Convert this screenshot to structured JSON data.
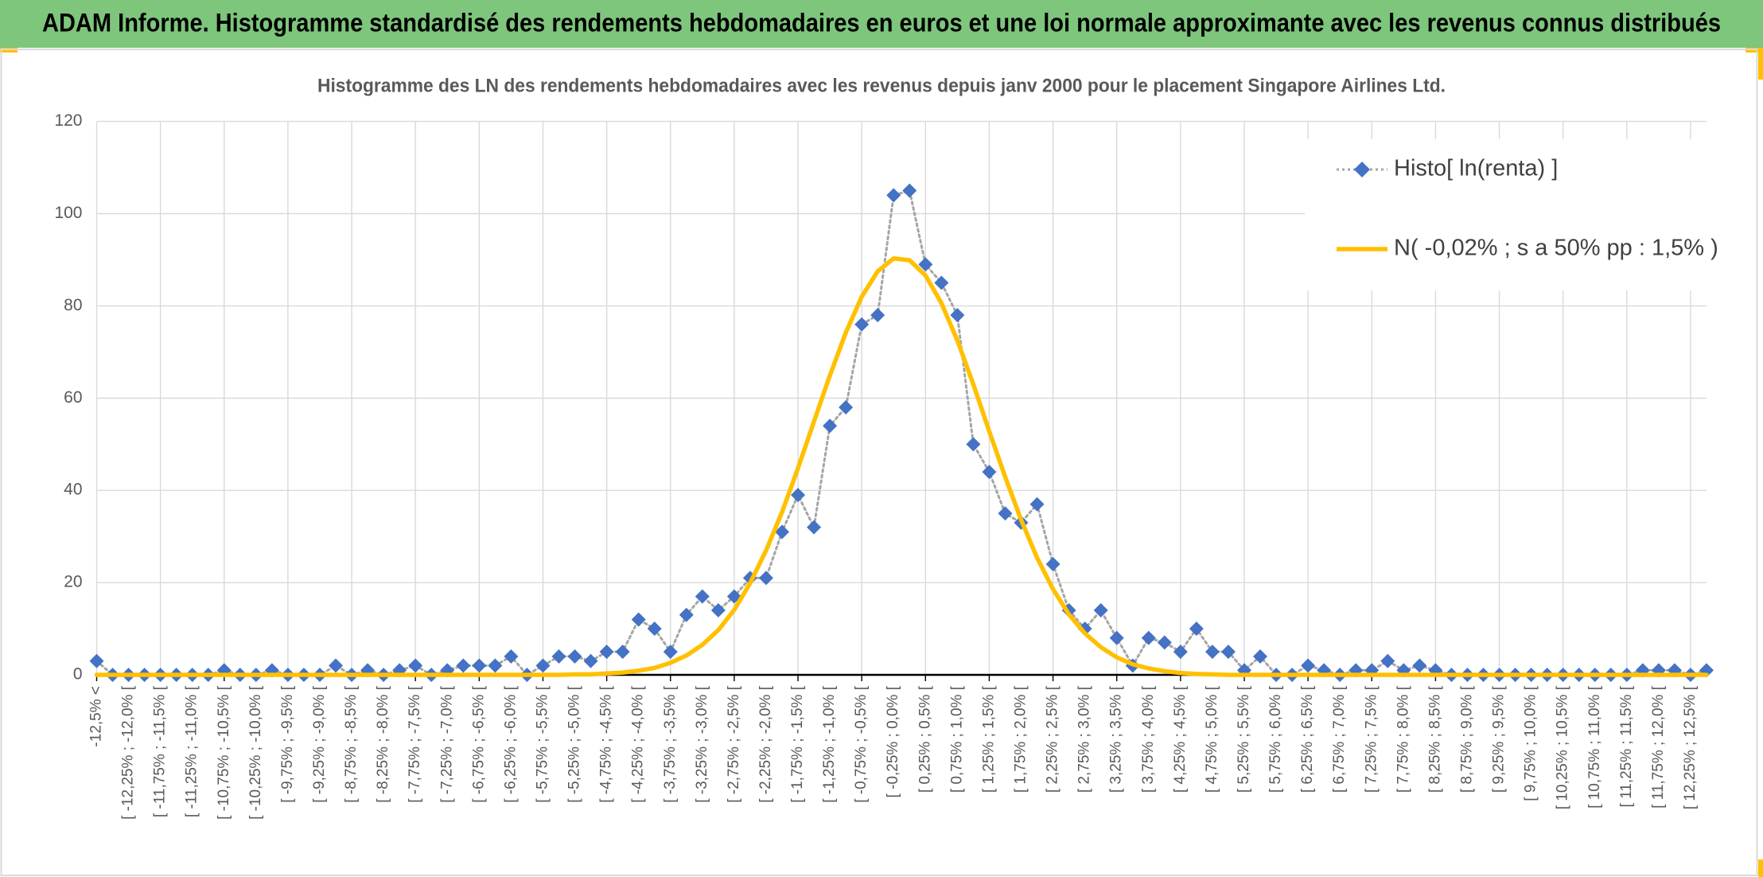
{
  "chart_data": {
    "type": "line",
    "title": "ADAM Informe. Histogramme standardisé des rendements hebdomadaires en euros et une loi normale approximante avec les revenus connus distribués",
    "subtitle": "Histogramme des LN des rendements hebdomadaires avec les revenus depuis janv 2000 pour le placement Singapore Airlines Ltd.",
    "categories": [
      "-12,5% <",
      null,
      "[ -12,25% ; -12,0% [",
      null,
      "[ -11,75% ; -11,5% [",
      null,
      "[ -11,25% ; -11,0% [",
      null,
      "[ -10,75% ; -10,5% [",
      null,
      "[ -10,25% ; -10,0% [",
      null,
      "[ -9,75% ; -9,5% [",
      null,
      "[ -9,25% ; -9,0% [",
      null,
      "[ -8,75% ; -8,5% [",
      null,
      "[ -8,25% ; -8,0% [",
      null,
      "[ -7,75% ; -7,5% [",
      null,
      "[ -7,25% ; -7,0% [",
      null,
      "[ -6,75% ; -6,5% [",
      null,
      "[ -6,25% ; -6,0% [",
      null,
      "[ -5,75% ; -5,5% [",
      null,
      "[ -5,25% ; -5,0% [",
      null,
      "[ -4,75% ; -4,5% [",
      null,
      "[ -4,25% ; -4,0% [",
      null,
      "[ -3,75% ; -3,5% [",
      null,
      "[ -3,25% ; -3,0% [",
      null,
      "[ -2,75% ; -2,5% [",
      null,
      "[ -2,25% ; -2,0% [",
      null,
      "[ -1,75% ; -1,5% [",
      null,
      "[ -1,25% ; -1,0% [",
      null,
      "[ -0,75% ; -0,5% [",
      null,
      "[ -0,25% ; 0,0% [",
      null,
      "[ 0,25% ; 0,5% [",
      null,
      "[ 0,75% ; 1,0% [",
      null,
      "[ 1,25% ; 1,5% [",
      null,
      "[ 1,75% ; 2,0% [",
      null,
      "[ 2,25% ; 2,5% [",
      null,
      "[ 2,75% ; 3,0% [",
      null,
      "[ 3,25% ; 3,5% [",
      null,
      "[ 3,75% ; 4,0% [",
      null,
      "[ 4,25% ; 4,5% [",
      null,
      "[ 4,75% ; 5,0% [",
      null,
      "[ 5,25% ; 5,5% [",
      null,
      "[ 5,75% ; 6,0% [",
      null,
      "[ 6,25% ; 6,5% [",
      null,
      "[ 6,75% ; 7,0% [",
      null,
      "[ 7,25% ; 7,5% [",
      null,
      "[ 7,75% ; 8,0% [",
      null,
      "[ 8,25% ; 8,5% [",
      null,
      "[ 8,75% ; 9,0% [",
      null,
      "[ 9,25% ; 9,5% [",
      null,
      "[ 9,75% ; 10,0% [",
      null,
      "[ 10,25% ; 10,5% [",
      null,
      "[ 10,75% ; 11,0% [",
      null,
      "[ 11,25% ; 11,5% [",
      null,
      "[ 11,75% ; 12,0% [",
      null,
      "[ 12,25% ; 12,5% [",
      null
    ],
    "series": [
      {
        "name": "Histo[ ln(renta) ]",
        "color": "#4472c4",
        "line_color": "#a5a5a5",
        "line_style": "dotted",
        "marker": "diamond",
        "values": [
          3,
          0,
          0,
          0,
          0,
          0,
          0,
          0,
          1,
          0,
          0,
          1,
          0,
          0,
          0,
          2,
          0,
          1,
          0,
          1,
          2,
          0,
          1,
          2,
          2,
          2,
          4,
          0,
          2,
          4,
          4,
          3,
          5,
          5,
          12,
          10,
          5,
          13,
          17,
          14,
          17,
          21,
          21,
          31,
          39,
          32,
          54,
          58,
          76,
          78,
          104,
          105,
          89,
          85,
          78,
          50,
          44,
          35,
          33,
          37,
          24,
          14,
          10,
          14,
          8,
          2,
          8,
          7,
          5,
          10,
          5,
          5,
          1,
          4,
          0,
          0,
          2,
          1,
          0,
          1,
          1,
          3,
          1,
          2,
          1,
          0,
          0,
          0,
          0,
          0,
          0,
          0,
          0,
          0,
          0,
          0,
          0,
          1,
          1,
          1,
          0,
          1
        ]
      },
      {
        "name": "N( -0,02% ; s a 50% pp : 1,5% )",
        "color": "#ffc000",
        "line_style": "solid",
        "values": [
          0,
          0,
          0,
          0,
          0,
          0,
          0,
          0,
          0,
          0,
          0,
          0,
          0,
          0,
          0,
          0,
          0,
          0,
          0,
          0,
          0,
          0,
          0,
          0,
          0,
          0,
          0,
          0,
          0,
          0,
          0.1,
          0.1,
          0.3,
          0.5,
          0.9,
          1.5,
          2.6,
          4.2,
          6.5,
          9.7,
          14.1,
          19.9,
          27.0,
          35.3,
          44.8,
          54.9,
          64.9,
          74.2,
          82.0,
          87.5,
          90.3,
          89.9,
          86.6,
          80.6,
          72.5,
          63.0,
          52.8,
          42.9,
          33.6,
          25.4,
          18.6,
          13.1,
          9.0,
          6.0,
          3.8,
          2.3,
          1.4,
          0.8,
          0.4,
          0.2,
          0.1,
          0,
          0,
          0,
          0,
          0,
          0,
          0,
          0,
          0,
          0,
          0,
          0,
          0,
          0,
          0,
          0,
          0,
          0,
          0,
          0,
          0,
          0,
          0,
          0,
          0,
          0,
          0,
          0,
          0,
          0,
          0
        ]
      }
    ],
    "ylim": [
      0,
      120
    ],
    "yticks": [
      0,
      20,
      40,
      60,
      80,
      100,
      120
    ],
    "grid": true,
    "legend": "top-right"
  }
}
